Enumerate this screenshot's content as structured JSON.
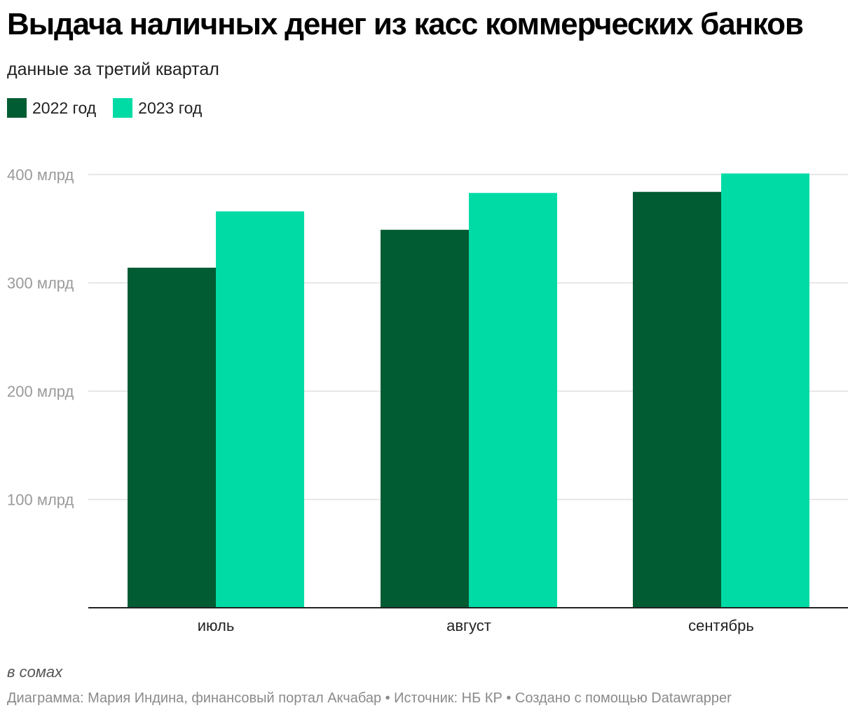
{
  "title": "Выдача наличных денег из касс коммерческих банков",
  "subtitle": "данные за третий квартал",
  "legend": [
    {
      "label": "2022 год",
      "color": "#025c33"
    },
    {
      "label": "2023 год",
      "color": "#00dba6"
    }
  ],
  "chart_data": {
    "type": "bar",
    "categories": [
      "июль",
      "август",
      "сентябрь"
    ],
    "series": [
      {
        "name": "2022 год",
        "values": [
          314,
          349,
          384
        ],
        "color": "#025c33"
      },
      {
        "name": "2023 год",
        "values": [
          366,
          383,
          401
        ],
        "color": "#00dba6"
      }
    ],
    "ylim": [
      0,
      401
    ],
    "yticks": [
      {
        "value": 100,
        "label": "100 млрд"
      },
      {
        "value": 200,
        "label": "200 млрд"
      },
      {
        "value": 300,
        "label": "300 млрд"
      },
      {
        "value": 400,
        "label": "400 млрд"
      }
    ],
    "grid": true,
    "legend_position": "top-left"
  },
  "footer": {
    "note": "в сомах",
    "credits": "Диаграмма: Мария Индина, финансовый портал Акчабар • Источник: НБ КР • Создано с помощью Datawrapper"
  }
}
